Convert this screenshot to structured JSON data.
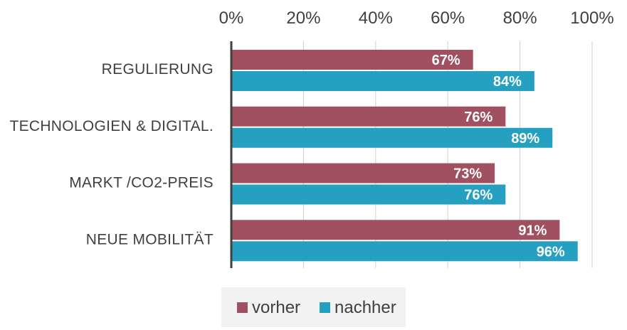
{
  "chart_data": {
    "type": "bar",
    "orientation": "horizontal",
    "categories": [
      "REGULIERUNG",
      "TECHNOLOGIEN & DIGITAL.",
      "MARKT /CO2-PREIS",
      "NEUE MOBILITÄT"
    ],
    "series": [
      {
        "name": "vorher",
        "color": "#a05060",
        "values": [
          67,
          76,
          73,
          91
        ]
      },
      {
        "name": "nachher",
        "color": "#26a0c0",
        "values": [
          84,
          89,
          76,
          96
        ]
      }
    ],
    "x_ticks": [
      "0%",
      "20%",
      "40%",
      "60%",
      "80%",
      "100%"
    ],
    "xlim": [
      0,
      100
    ],
    "value_suffix": "%",
    "grid": true,
    "axis_position": "top",
    "legend_position": "bottom"
  }
}
